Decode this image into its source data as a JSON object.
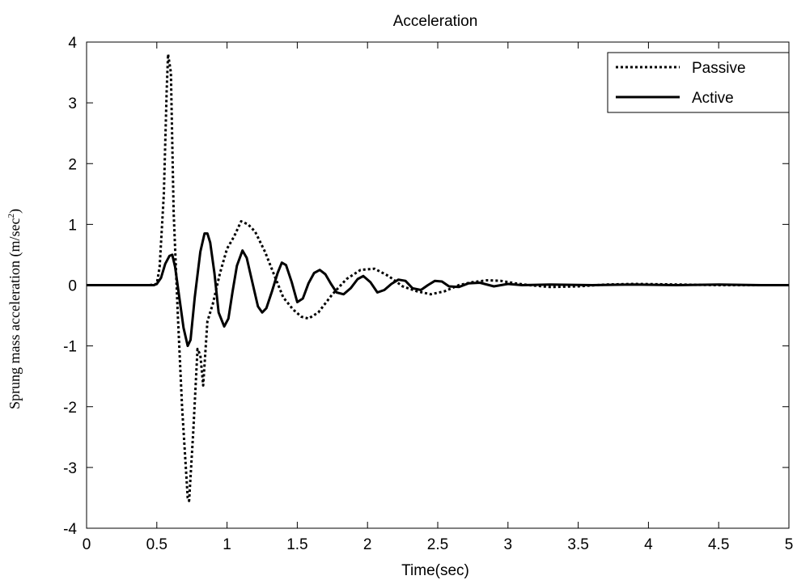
{
  "chart_data": {
    "type": "line",
    "title": "Acceleration",
    "xlabel": "Time(sec)",
    "ylabel": "Sprung mass acceleration (m/sec",
    "ylabel_sup": "2",
    "ylabel_close": ")",
    "xlim": [
      0,
      5
    ],
    "ylim": [
      -4,
      4
    ],
    "xticks": [
      0,
      0.5,
      1,
      1.5,
      2,
      2.5,
      3,
      3.5,
      4,
      4.5,
      5
    ],
    "xtick_labels": [
      "0",
      "0.5",
      "1",
      "1.5",
      "2",
      "2.5",
      "3",
      "3.5",
      "4",
      "4.5",
      "5"
    ],
    "yticks": [
      -4,
      -3,
      -2,
      -1,
      0,
      1,
      2,
      3,
      4
    ],
    "ytick_labels": [
      "-4",
      "-3",
      "-2",
      "-1",
      "0",
      "1",
      "2",
      "3",
      "4"
    ],
    "grid": false,
    "legend_position": "top-right",
    "series": [
      {
        "name": "Passive",
        "style": "dotted",
        "color": "#000000",
        "x": [
          0,
          0.45,
          0.5,
          0.52,
          0.55,
          0.57,
          0.58,
          0.6,
          0.62,
          0.65,
          0.68,
          0.72,
          0.73,
          0.76,
          0.79,
          0.81,
          0.83,
          0.86,
          0.9,
          0.95,
          1.0,
          1.05,
          1.1,
          1.15,
          1.2,
          1.27,
          1.33,
          1.4,
          1.47,
          1.53,
          1.58,
          1.65,
          1.75,
          1.85,
          1.95,
          2.05,
          2.15,
          2.25,
          2.35,
          2.45,
          2.55,
          2.65,
          2.75,
          2.85,
          2.95,
          3.05,
          3.15,
          3.3,
          3.5,
          3.7,
          3.9,
          4.2,
          4.5,
          4.8,
          5.0
        ],
        "y": [
          0,
          0,
          0.02,
          0.3,
          1.5,
          3.2,
          3.8,
          3.5,
          1.2,
          -0.5,
          -2.0,
          -3.5,
          -3.55,
          -2.4,
          -1.05,
          -1.15,
          -1.65,
          -0.6,
          -0.3,
          0.2,
          0.6,
          0.8,
          1.05,
          1.0,
          0.88,
          0.55,
          0.2,
          -0.2,
          -0.4,
          -0.52,
          -0.55,
          -0.45,
          -0.15,
          0.1,
          0.25,
          0.27,
          0.15,
          -0.02,
          -0.1,
          -0.15,
          -0.1,
          0,
          0.05,
          0.08,
          0.07,
          0.03,
          0,
          -0.03,
          -0.02,
          0.01,
          0.02,
          0.01,
          0,
          0,
          0
        ]
      },
      {
        "name": "Active",
        "style": "solid",
        "color": "#000000",
        "x": [
          0,
          0.48,
          0.5,
          0.53,
          0.56,
          0.59,
          0.61,
          0.63,
          0.66,
          0.69,
          0.72,
          0.74,
          0.77,
          0.81,
          0.84,
          0.86,
          0.88,
          0.91,
          0.94,
          0.98,
          1.01,
          1.04,
          1.07,
          1.11,
          1.14,
          1.18,
          1.22,
          1.25,
          1.28,
          1.32,
          1.36,
          1.39,
          1.42,
          1.46,
          1.5,
          1.54,
          1.58,
          1.62,
          1.66,
          1.7,
          1.74,
          1.78,
          1.83,
          1.88,
          1.93,
          1.97,
          2.02,
          2.07,
          2.12,
          2.17,
          2.22,
          2.27,
          2.32,
          2.38,
          2.43,
          2.48,
          2.53,
          2.58,
          2.65,
          2.72,
          2.8,
          2.9,
          3.0,
          3.1,
          3.3,
          3.6,
          3.9,
          4.2,
          4.5,
          4.8,
          5.0
        ],
        "y": [
          0,
          0,
          0.02,
          0.12,
          0.35,
          0.48,
          0.5,
          0.3,
          -0.2,
          -0.7,
          -1.0,
          -0.9,
          -0.2,
          0.55,
          0.85,
          0.85,
          0.7,
          0.2,
          -0.45,
          -0.68,
          -0.55,
          -0.1,
          0.32,
          0.57,
          0.45,
          0.05,
          -0.35,
          -0.45,
          -0.38,
          -0.1,
          0.2,
          0.37,
          0.33,
          0.05,
          -0.28,
          -0.22,
          0.03,
          0.2,
          0.25,
          0.18,
          0.02,
          -0.12,
          -0.15,
          -0.05,
          0.1,
          0.15,
          0.05,
          -0.12,
          -0.08,
          0.02,
          0.09,
          0.07,
          -0.05,
          -0.08,
          0,
          0.07,
          0.06,
          -0.02,
          -0.03,
          0.03,
          0.04,
          -0.02,
          0.02,
          0,
          0.01,
          0,
          0.01,
          0,
          0.01,
          0,
          0
        ]
      }
    ]
  }
}
